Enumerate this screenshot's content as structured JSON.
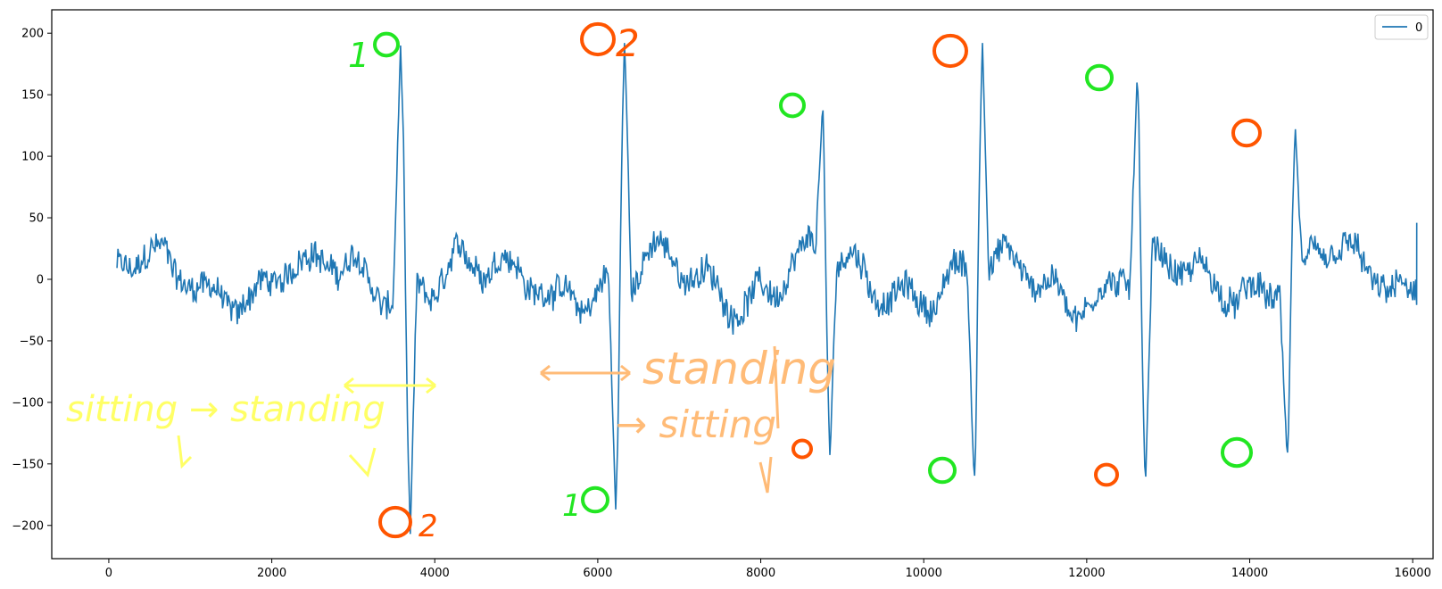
{
  "chart_data": {
    "type": "line",
    "title": "",
    "xlabel": "",
    "ylabel": "",
    "xlim": [
      -700,
      16250
    ],
    "ylim": [
      -227,
      219
    ],
    "xticks": [
      0,
      2000,
      4000,
      6000,
      8000,
      10000,
      12000,
      14000,
      16000
    ],
    "xtick_labels": [
      "0",
      "2000",
      "4000",
      "6000",
      "8000",
      "10000",
      "12000",
      "14000",
      "16000"
    ],
    "yticks": [
      -200,
      -150,
      -100,
      -50,
      0,
      50,
      100,
      150,
      200
    ],
    "ytick_labels": [
      "−200",
      "−150",
      "−100",
      "−50",
      "0",
      "50",
      "100",
      "150",
      "200"
    ],
    "grid": false,
    "legend": {
      "position": "top-right",
      "entries": [
        "0"
      ]
    },
    "series": [
      {
        "name": "0",
        "color": "#1f77b4",
        "x_start": 100,
        "x_end": 16050,
        "baseline_amplitude": 30,
        "spikes": [
          {
            "x": 3580,
            "peak": 190,
            "x2": 3700,
            "trough": -207
          },
          {
            "x": 6220,
            "peak": -187,
            "x2": 6330,
            "trough": 197
          },
          {
            "x": 8760,
            "peak": 143,
            "x2": 8850,
            "trough": -147
          },
          {
            "x": 10620,
            "peak": -167,
            "x2": 10720,
            "trough": 192
          },
          {
            "x": 12620,
            "peak": 167,
            "x2": 12720,
            "trough": -170
          },
          {
            "x": 14460,
            "peak": -147,
            "x2": 14560,
            "trough": 122
          }
        ],
        "end_value": 46
      }
    ],
    "annotations": {
      "sitting_to_standing": "sitting → standing",
      "standing": "standing",
      "to_sitting": "→ sitting",
      "label_1": "1",
      "label_2": "2",
      "colors": {
        "green": "#22e622",
        "red": "#ff5500",
        "yellow": "#ffff66",
        "orange": "#ffbb77"
      }
    }
  }
}
